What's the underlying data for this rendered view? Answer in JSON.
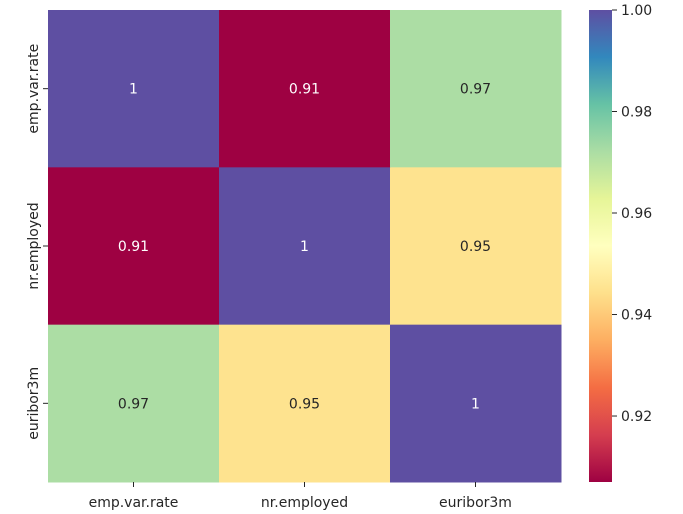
{
  "chart_data": {
    "type": "heatmap",
    "title": "",
    "xlabel": "",
    "ylabel": "",
    "x_labels": [
      "emp.var.rate",
      "nr.employed",
      "euribor3m"
    ],
    "y_labels": [
      "emp.var.rate",
      "nr.employed",
      "euribor3m"
    ],
    "values": [
      [
        1.0,
        0.907,
        0.972
      ],
      [
        0.907,
        1.0,
        0.945
      ],
      [
        0.972,
        0.945,
        1.0
      ]
    ],
    "annotations": [
      [
        "1",
        "0.91",
        "0.97"
      ],
      [
        "0.91",
        "1",
        "0.95"
      ],
      [
        "0.97",
        "0.95",
        "1"
      ]
    ],
    "colormap": "Spectral",
    "color_range": [
      0.907,
      1.0
    ],
    "colorbar_ticks": [
      {
        "value": 0.92,
        "label": "0.92"
      },
      {
        "value": 0.94,
        "label": "0.94"
      },
      {
        "value": 0.96,
        "label": "0.96"
      },
      {
        "value": 0.98,
        "label": "0.98"
      },
      {
        "value": 1.0,
        "label": "1.00"
      }
    ],
    "grid": false,
    "legend": "colorbar-right"
  }
}
